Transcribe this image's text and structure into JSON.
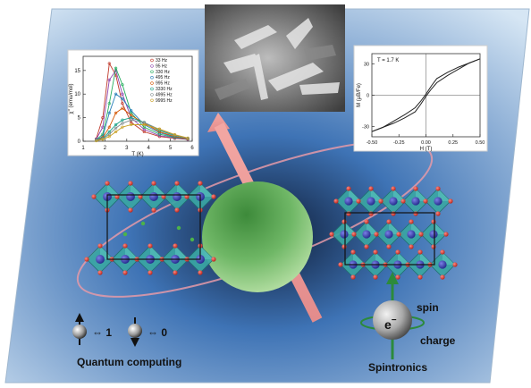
{
  "chart_left": {
    "type": "line",
    "ylabel": "χ'' (emu/mol)",
    "xlabel": "T (K)",
    "x_ticks": [
      "1",
      "2",
      "3",
      "4",
      "5",
      "6"
    ],
    "y_ticks": [
      "0",
      "5",
      "10",
      "15"
    ],
    "xlim": [
      1,
      6
    ],
    "ylim": [
      0,
      18
    ],
    "legend_position": "top-right",
    "series": [
      {
        "name": "33 Hz",
        "color": "#c0392b",
        "x": [
          1.6,
          1.9,
          2.2,
          2.5,
          2.8,
          3.2,
          3.8,
          4.5,
          5.2,
          5.8
        ],
        "y": [
          0.5,
          5,
          16.5,
          14,
          8,
          4,
          2,
          1,
          0.6,
          0.4
        ]
      },
      {
        "name": "95 Hz",
        "color": "#8e44ad",
        "x": [
          1.6,
          1.9,
          2.2,
          2.5,
          2.8,
          3.2,
          3.8,
          4.5,
          5.2,
          5.8
        ],
        "y": [
          0.4,
          3,
          13,
          15,
          10,
          5,
          2.5,
          1.2,
          0.7,
          0.4
        ]
      },
      {
        "name": "330 Hz",
        "color": "#27ae60",
        "x": [
          1.6,
          1.9,
          2.2,
          2.5,
          2.8,
          3.2,
          3.8,
          4.5,
          5.2,
          5.8
        ],
        "y": [
          0.3,
          1.5,
          8,
          15.5,
          12,
          6,
          3,
          1.5,
          0.8,
          0.5
        ]
      },
      {
        "name": "495 Hz",
        "color": "#2980b9",
        "x": [
          1.6,
          1.9,
          2.2,
          2.5,
          2.8,
          3.2,
          3.8,
          4.5,
          5.2,
          5.8
        ],
        "y": [
          0.3,
          1,
          6,
          10,
          9,
          6.5,
          3.5,
          1.8,
          0.9,
          0.5
        ]
      },
      {
        "name": "995 Hz",
        "color": "#d35400",
        "x": [
          1.6,
          1.9,
          2.2,
          2.5,
          2.8,
          3.2,
          3.8,
          4.5,
          5.2,
          5.8
        ],
        "y": [
          0.2,
          0.8,
          3,
          6,
          7,
          5.5,
          3.8,
          2,
          1,
          0.5
        ]
      },
      {
        "name": "3330 Hz",
        "color": "#16a085",
        "x": [
          1.6,
          1.9,
          2.2,
          2.5,
          2.8,
          3.2,
          3.8,
          4.5,
          5.2,
          5.8
        ],
        "y": [
          0.2,
          0.6,
          2,
          3.5,
          4.5,
          5,
          4,
          2.3,
          1.2,
          0.6
        ]
      },
      {
        "name": "4995 Hz",
        "color": "#7f8c8d",
        "x": [
          1.6,
          1.9,
          2.2,
          2.5,
          2.8,
          3.2,
          3.8,
          4.5,
          5.2,
          5.8
        ],
        "y": [
          0.2,
          0.5,
          1.5,
          2.8,
          3.8,
          4.5,
          4,
          2.5,
          1.3,
          0.6
        ]
      },
      {
        "name": "9995 Hz",
        "color": "#c9a227",
        "x": [
          1.6,
          1.9,
          2.2,
          2.5,
          2.8,
          3.2,
          3.8,
          4.5,
          5.2,
          5.8
        ],
        "y": [
          0.1,
          0.4,
          1,
          2,
          3,
          3.5,
          3.5,
          2.6,
          1.4,
          0.7
        ]
      }
    ]
  },
  "chart_right": {
    "type": "line",
    "annotation": "T = 1.7 K",
    "ylabel": "M (μB/Fe)",
    "xlabel": "H (T)",
    "x_ticks": [
      "-0.50",
      "-0.25",
      "0.00",
      "0.25",
      "0.50"
    ],
    "y_ticks": [
      "-30",
      "0",
      "30"
    ],
    "xlim": [
      -0.5,
      0.5
    ],
    "ylim": [
      -40,
      40
    ],
    "series": [
      {
        "name": "",
        "color": "#222222",
        "x": [
          -0.5,
          -0.4,
          -0.3,
          -0.2,
          -0.1,
          -0.05,
          0,
          0.05,
          0.1,
          0.2,
          0.3,
          0.4,
          0.5
        ],
        "y": [
          -35,
          -31,
          -27,
          -22,
          -16,
          -9,
          -1,
          6,
          12,
          19,
          25,
          31,
          35
        ]
      },
      {
        "name": "",
        "color": "#222222",
        "x": [
          -0.5,
          -0.4,
          -0.3,
          -0.2,
          -0.1,
          -0.05,
          0,
          0.05,
          0.1,
          0.2,
          0.3,
          0.4,
          0.5
        ],
        "y": [
          -35,
          -31,
          -25,
          -19,
          -12,
          -6,
          1,
          9,
          16,
          22,
          27,
          31,
          35
        ]
      }
    ]
  },
  "labels": {
    "quantum_one": "⇔ 1",
    "quantum_zero": "⇔ 0",
    "quantum_computing": "Quantum computing",
    "spin": "spin",
    "electron": "e",
    "electron_sup": "−",
    "charge": "charge",
    "spintronics": "Spintronics"
  },
  "colors": {
    "panel_light": "#c9dff1",
    "panel_dark": "#4f84c1",
    "polyhedron": "#3aa6a4",
    "metal_atom": "#2e35a8",
    "oxygen_atom": "#d8332a",
    "sphere": "#7fc173",
    "arrow": "#f2a3a3",
    "orbit": "#e59aa8"
  },
  "icons": [
    "spin-up-ball-icon",
    "spin-down-ball-icon",
    "electron-sphere-icon",
    "sem-micrograph"
  ]
}
